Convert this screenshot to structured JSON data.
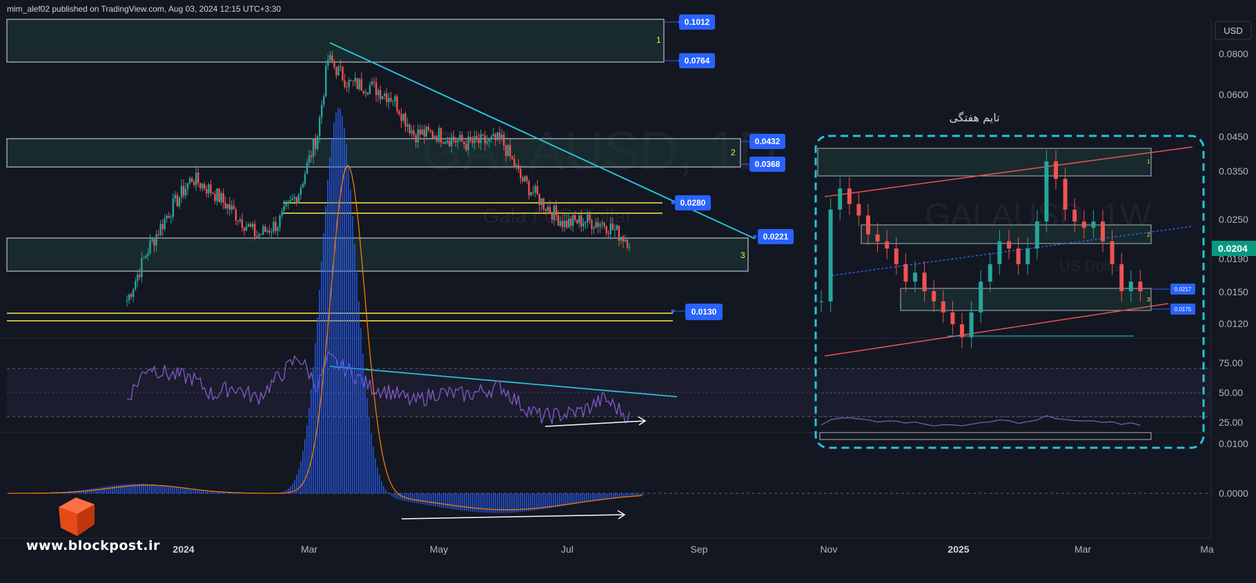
{
  "header": {
    "publisher": "mim_alef02 published on TradingView.com, Aug 03, 2024 12:15 UTC+3:30"
  },
  "watermark": {
    "symbol": "GALAUSD, 1D",
    "name": "Gala / US Dollar",
    "inset_symbol": "GALAUSD, 1W",
    "inset_name": "US Dollar"
  },
  "logo": {
    "text": "www.blockpost.ir"
  },
  "inset": {
    "title": "تایم هفتگی",
    "zone_labels": [
      "1",
      "2",
      "3"
    ],
    "tags": [
      "0.0217",
      "0.0175"
    ]
  },
  "price_axis": {
    "currency": "USD",
    "ticks": [
      "0.0800",
      "0.0600",
      "0.0450",
      "0.0350",
      "0.0250",
      "0.0190",
      "0.0150",
      "0.0120"
    ],
    "current_price": "0.0204"
  },
  "rsi_axis": {
    "ticks": [
      "75.00",
      "50.00",
      "25.00"
    ]
  },
  "macd_axis": {
    "ticks": [
      "0.0100",
      "0.0000"
    ]
  },
  "time_axis": {
    "labels": [
      "2024",
      "Mar",
      "May",
      "Jul",
      "Sep",
      "Nov",
      "2025",
      "Mar",
      "Ma"
    ]
  },
  "chart_data": {
    "type": "candlestick",
    "symbol": "GALAUSD, 1D",
    "levels": [
      {
        "label": "0.1012",
        "zone": "1",
        "color": "#2962ff"
      },
      {
        "label": "0.0764",
        "zone": "1",
        "color": "#2962ff"
      },
      {
        "label": "0.0432",
        "zone": "2",
        "color": "#2962ff"
      },
      {
        "label": "0.0368",
        "zone": "2",
        "color": "#2962ff"
      },
      {
        "label": "0.0280",
        "zone": "",
        "color": "#2962ff"
      },
      {
        "label": "0.0221",
        "zone": "3",
        "color": "#2962ff"
      },
      {
        "label": "0.0130",
        "zone": "",
        "color": "#2962ff"
      }
    ],
    "zone_labels": [
      "1",
      "2",
      "3"
    ],
    "price_series": {
      "dates": [
        "2023-12-05",
        "2023-12-15",
        "2023-12-25",
        "2024-01-05",
        "2024-01-15",
        "2024-01-25",
        "2024-02-05",
        "2024-02-15",
        "2024-02-25",
        "2024-03-05",
        "2024-03-10",
        "2024-03-20",
        "2024-03-30",
        "2024-04-10",
        "2024-04-20",
        "2024-05-01",
        "2024-05-15",
        "2024-06-01",
        "2024-06-10",
        "2024-06-20",
        "2024-07-01",
        "2024-07-10",
        "2024-07-20",
        "2024-08-02"
      ],
      "close": [
        0.014,
        0.02,
        0.026,
        0.033,
        0.03,
        0.026,
        0.022,
        0.024,
        0.03,
        0.045,
        0.076,
        0.064,
        0.063,
        0.058,
        0.045,
        0.045,
        0.042,
        0.043,
        0.033,
        0.028,
        0.024,
        0.0245,
        0.024,
        0.021
      ]
    },
    "rsi": {
      "levels": [
        75,
        50,
        25
      ],
      "values": [
        45,
        72,
        65,
        62,
        48,
        55,
        45,
        62,
        80,
        55,
        78,
        68,
        55,
        50,
        42,
        50,
        48,
        55,
        40,
        30,
        32,
        35,
        45,
        28
      ]
    },
    "macd": {
      "zero": 0.0
    },
    "current_price": "0.0204",
    "colors": {
      "up": "#26a69a",
      "down": "#ef5350",
      "zone": "#1e3b36",
      "trend": "#26c6da",
      "rsi": "#7e57c2",
      "level_tag": "#2962ff",
      "support": "#ffeb3b"
    }
  }
}
